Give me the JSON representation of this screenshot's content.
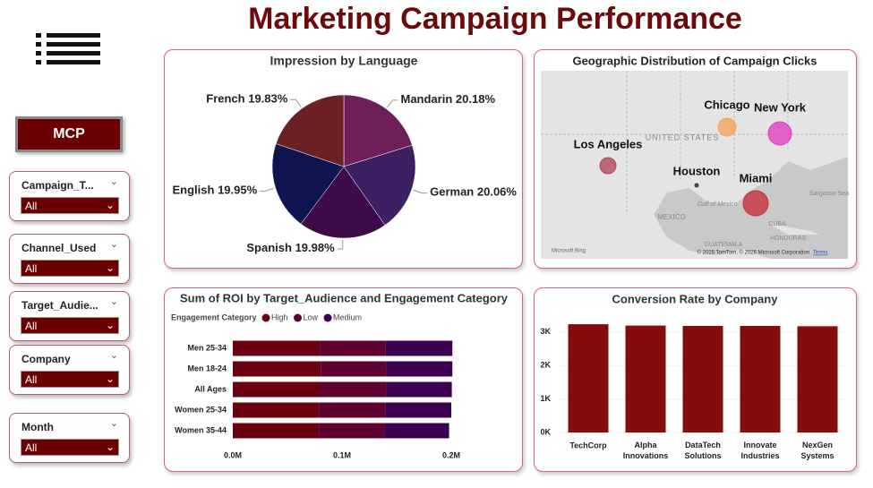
{
  "title": "Marketing Campaign Performance",
  "logo": "MCP",
  "filters": [
    {
      "label": "Campaign_T...",
      "value": "All"
    },
    {
      "label": "Channel_Used",
      "value": "All"
    },
    {
      "label": "Target_Audie...",
      "value": "All"
    },
    {
      "label": "Company",
      "value": "All"
    },
    {
      "label": "Month",
      "value": "All"
    }
  ],
  "map": {
    "title": "Geographic Distribution of Campaign Clicks",
    "cities": [
      {
        "name": "Chicago",
        "color": "#f4a460"
      },
      {
        "name": "New York",
        "color": "#e040c0"
      },
      {
        "name": "Los Angeles",
        "color": "#b04a55"
      },
      {
        "name": "Houston",
        "color": "#333333"
      },
      {
        "name": "Miami",
        "color": "#c8323c"
      }
    ],
    "places": [
      "UNITED STATES",
      "MEXICO",
      "Gulf of Mexico",
      "CUBA",
      "Sargasso Sea",
      "GUATEMALA",
      "HONDURAS"
    ],
    "brand": "Microsoft Bing",
    "attribution": "© 2025 TomTom, © 2025 Microsoft Corporation",
    "terms": "Terms"
  },
  "chart_data": [
    {
      "type": "pie",
      "title": "Impression by Language",
      "categories": [
        "Mandarin",
        "German",
        "Spanish",
        "English",
        "French"
      ],
      "values": [
        20.18,
        20.06,
        19.98,
        19.95,
        19.83
      ],
      "value_labels": [
        "20.18%",
        "20.06%",
        "19.98%",
        "19.95%",
        "19.83%"
      ],
      "colors": [
        "#6f1f57",
        "#3b2163",
        "#3d0a4a",
        "#0e1450",
        "#6b2025"
      ]
    },
    {
      "type": "hbar-stacked",
      "title": "Sum of ROI by Target_Audience and Engagement Category",
      "legend_title": "Engagement Category",
      "categories": [
        "Men 25-34",
        "Men 18-24",
        "All Ages",
        "Women 25-34",
        "Women 35-44"
      ],
      "series": [
        {
          "name": "High",
          "color": "#6b0010",
          "values": [
            80000,
            80500,
            79500,
            79000,
            79000
          ]
        },
        {
          "name": "Low",
          "color": "#5e0030",
          "values": [
            60000,
            60000,
            61000,
            60500,
            60000
          ]
        },
        {
          "name": "Medium",
          "color": "#3d0050",
          "values": [
            61000,
            60500,
            60000,
            60500,
            59000
          ]
        }
      ],
      "xlim": [
        0,
        210000
      ],
      "xticks": [
        {
          "value": 0,
          "label": "0.0M"
        },
        {
          "value": 100000,
          "label": "0.1M"
        },
        {
          "value": 200000,
          "label": "0.2M"
        }
      ]
    },
    {
      "type": "bar",
      "title": "Conversion Rate by Company",
      "categories": [
        "TechCorp",
        "Alpha Innovations",
        "DataTech Solutions",
        "Innovate Industries",
        "NexGen Systems"
      ],
      "values": [
        3230,
        3190,
        3180,
        3180,
        3170
      ],
      "color": "#860c0c",
      "ylim": [
        0,
        3500
      ],
      "yticks": [
        {
          "value": 0,
          "label": "0K"
        },
        {
          "value": 1000,
          "label": "1K"
        },
        {
          "value": 2000,
          "label": "2K"
        },
        {
          "value": 3000,
          "label": "3K"
        }
      ],
      "grid": true
    }
  ]
}
